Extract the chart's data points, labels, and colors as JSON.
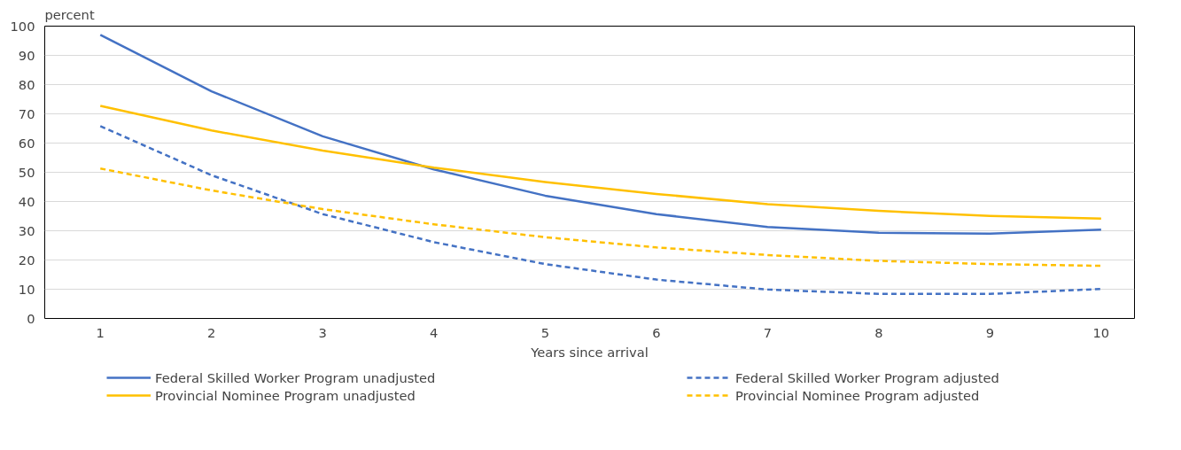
{
  "chart_data": {
    "type": "line",
    "ylabel": "percent",
    "xlabel": "Years since arrival",
    "x": [
      1,
      2,
      3,
      4,
      5,
      6,
      7,
      8,
      9,
      10
    ],
    "xlim": [
      0.5,
      10.3
    ],
    "xticks": [
      1,
      2,
      3,
      4,
      5,
      6,
      7,
      8,
      9,
      10
    ],
    "ylim": [
      0,
      100
    ],
    "yticks": [
      0,
      10,
      20,
      30,
      40,
      50,
      60,
      70,
      80,
      90,
      100
    ],
    "grid": "y",
    "legend": "bottom",
    "marker": "none",
    "series": [
      {
        "name": "Federal Skilled Worker Program unadjusted",
        "color": "#4472c4",
        "line_style": "solid",
        "values": [
          97,
          77.7,
          62.3,
          51,
          42,
          35.7,
          31.3,
          29.3,
          29,
          30.4
        ]
      },
      {
        "name": "Federal Skilled Worker Program adjusted",
        "color": "#4472c4",
        "line_style": "dashed",
        "values": [
          65.8,
          49,
          35.7,
          26.1,
          18.6,
          13.3,
          9.9,
          8.4,
          8.4,
          10.1
        ]
      },
      {
        "name": "Provincial Nominee Program unadjusted",
        "color": "#ffc000",
        "line_style": "solid",
        "values": [
          72.7,
          64.3,
          57.4,
          51.6,
          46.7,
          42.6,
          39.1,
          36.8,
          35.1,
          34.2
        ]
      },
      {
        "name": "Provincial Nominee Program adjusted",
        "color": "#ffc000",
        "line_style": "dashed",
        "values": [
          51.3,
          43.8,
          37.4,
          32.2,
          27.8,
          24.3,
          21.7,
          19.7,
          18.6,
          18
        ]
      }
    ]
  }
}
